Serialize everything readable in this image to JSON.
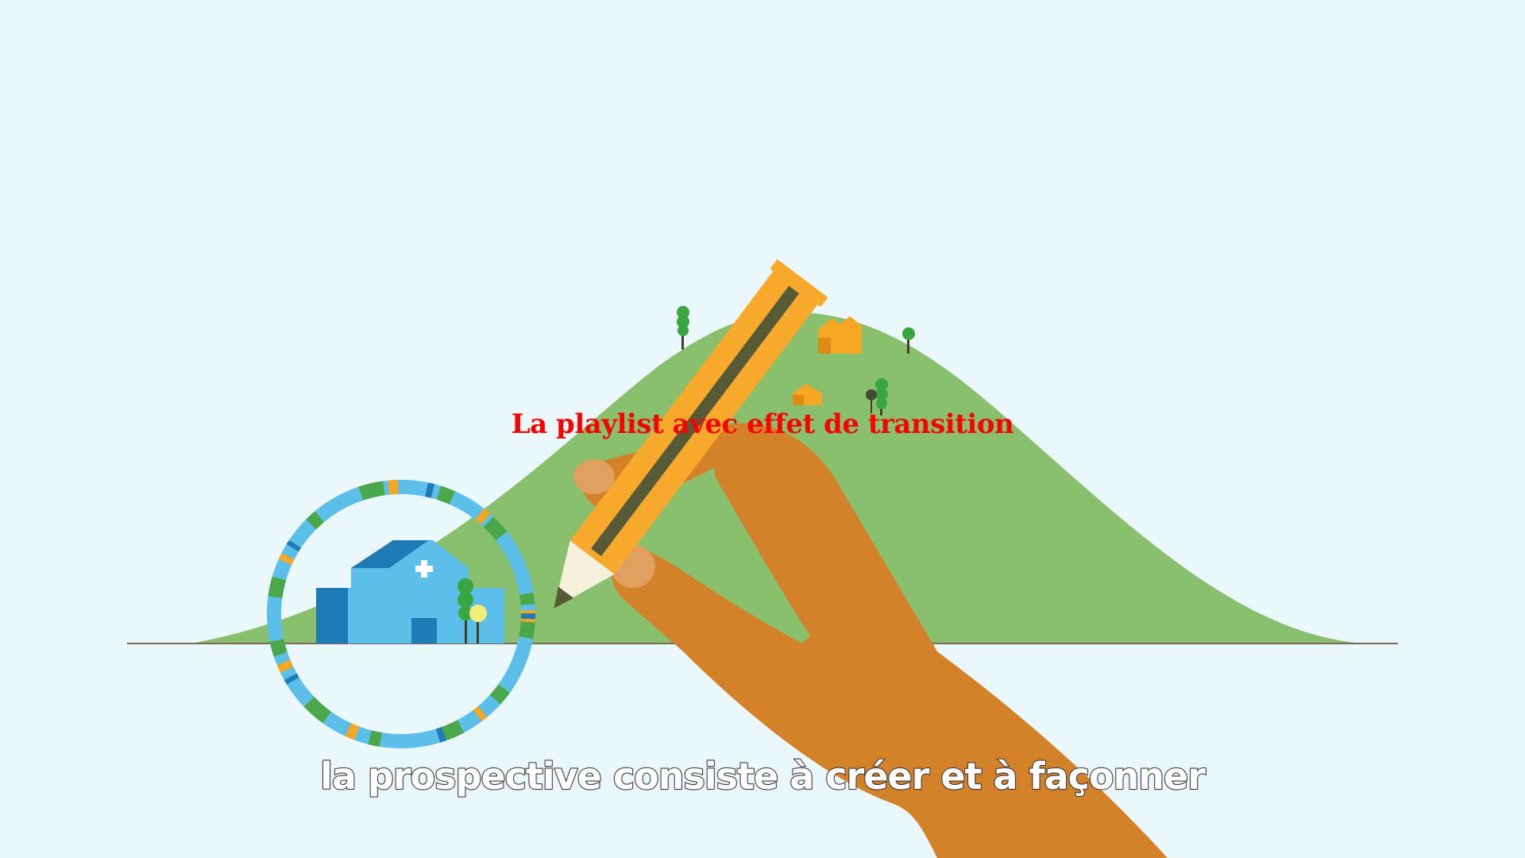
{
  "overlay": {
    "title": "La playlist avec effet de transition"
  },
  "captions": {
    "subtitle": "la prospective consiste à créer et à façonner"
  },
  "colors": {
    "sky": "#eaf7fb",
    "hill": "#88c06e",
    "ground_line": "#7a6a5a",
    "ring_blue": "#5bbfea",
    "ring_green": "#4aa84a",
    "ring_orange": "#f5a623",
    "building": "#5bbfea",
    "building_dark": "#1f7bb5",
    "houses": "#f5a623",
    "trees": "#3aa640",
    "pencil": "#f6a92b",
    "pencil_stripe": "#565a36",
    "hand": "#d4822a",
    "fingertip": "#e0a060",
    "title_red": "#ff0000"
  },
  "icons": {
    "cross": "hospital-cross-icon"
  }
}
